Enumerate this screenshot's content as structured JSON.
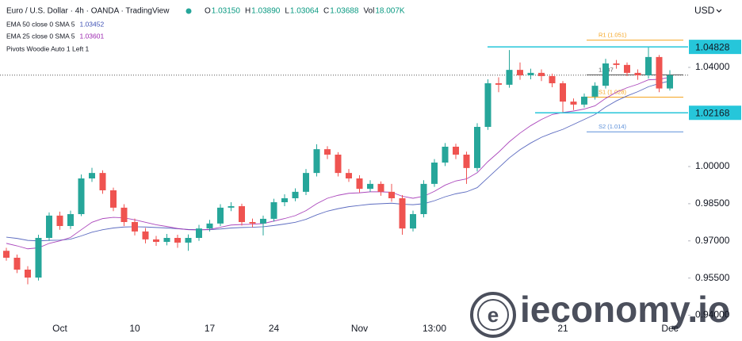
{
  "header": {
    "symbol": "Euro / U.S. Dollar · 4h · OANDA · TradingView",
    "ohlc": [
      [
        "O",
        "1.03150"
      ],
      [
        "H",
        "1.03890"
      ],
      [
        "L",
        "1.03064"
      ],
      [
        "C",
        "1.03688"
      ],
      [
        "Vol",
        "18.007K"
      ]
    ],
    "indicators": [
      "EMA 50 close 0 SMA 5",
      "EMA 25 close 0 SMA 5",
      "Pivots Woodie Auto 1 Left 1"
    ],
    "currency": "USD",
    "watermark": "ieconomy.io"
  },
  "chart_data": {
    "type": "candlestick",
    "categories": [
      null,
      null,
      null,
      null,
      null,
      "Oct",
      null,
      null,
      null,
      null,
      null,
      null,
      "10",
      null,
      null,
      null,
      null,
      null,
      null,
      "17",
      null,
      null,
      null,
      null,
      null,
      "24",
      null,
      null,
      null,
      null,
      null,
      null,
      null,
      "Nov",
      null,
      null,
      null,
      null,
      null,
      null,
      "13:00",
      null,
      null,
      null,
      null,
      null,
      null,
      null,
      null,
      null,
      null,
      null,
      "21",
      null,
      null,
      null,
      null,
      null,
      null,
      null,
      null,
      null,
      "Dec"
    ],
    "open": [
      0.966,
      0.9632,
      0.9584,
      0.9552,
      0.9712,
      0.9802,
      0.976,
      0.9808,
      0.9952,
      0.9974,
      0.9904,
      0.9834,
      0.9776,
      0.9738,
      0.9706,
      0.9696,
      0.9712,
      0.9693,
      0.9712,
      0.975,
      0.977,
      0.9834,
      0.984,
      0.9776,
      0.977,
      0.9789,
      0.9856,
      0.9872,
      0.9898,
      0.9974,
      1.007,
      1.0048,
      0.9974,
      0.9952,
      0.991,
      0.993,
      0.9898,
      0.9872,
      0.975,
      0.9808,
      0.993,
      1.0016,
      1.008,
      1.0048,
      0.9994,
      1.016,
      1.0336,
      1.033,
      1.039,
      1.0368,
      1.0378,
      1.0365,
      1.0336,
      1.0262,
      1.025,
      1.0282,
      1.0326,
      1.0416,
      1.041,
      1.0378,
      1.0368,
      1.0442,
      1.0315
    ],
    "high": [
      0.9672,
      0.9645,
      0.9598,
      0.9725,
      0.9815,
      0.9818,
      0.9822,
      0.9968,
      0.9995,
      0.9985,
      0.9915,
      0.9848,
      0.979,
      0.9752,
      0.972,
      0.9728,
      0.9725,
      0.9726,
      0.9765,
      0.9785,
      0.9848,
      0.9856,
      0.985,
      0.979,
      0.9802,
      0.987,
      0.9888,
      0.9912,
      0.999,
      1.009,
      1.0082,
      1.0058,
      0.999,
      0.9965,
      0.9945,
      0.994,
      0.993,
      0.9885,
      0.9822,
      0.9945,
      1.003,
      1.0095,
      1.0092,
      1.006,
      1.0175,
      1.0352,
      1.036,
      1.047,
      1.042,
      1.0395,
      1.0392,
      1.0375,
      1.0345,
      1.0275,
      1.0295,
      1.034,
      1.0435,
      1.043,
      1.042,
      1.0392,
      1.0483,
      1.045,
      1.0389
    ],
    "low": [
      0.962,
      0.957,
      0.9525,
      0.954,
      0.97,
      0.9745,
      0.9748,
      0.98,
      0.9938,
      0.989,
      0.982,
      0.976,
      0.9722,
      0.969,
      0.968,
      0.9682,
      0.9672,
      0.966,
      0.97,
      0.9738,
      0.976,
      0.982,
      0.9762,
      0.9755,
      0.9722,
      0.9778,
      0.984,
      0.986,
      0.9885,
      0.996,
      1.003,
      0.996,
      0.9938,
      0.9895,
      0.9898,
      0.9882,
      0.9858,
      0.9725,
      0.9738,
      0.9795,
      0.9918,
      1.0002,
      1.003,
      0.993,
      0.998,
      1.0148,
      1.03,
      1.0318,
      1.035,
      1.0352,
      1.0345,
      1.032,
      1.0217,
      1.0228,
      1.0238,
      1.027,
      1.0315,
      1.0395,
      1.0365,
      1.035,
      1.0355,
      1.03,
      1.03064
    ],
    "close": [
      0.9632,
      0.9584,
      0.9552,
      0.9712,
      0.9802,
      0.976,
      0.9808,
      0.9952,
      0.9974,
      0.9904,
      0.9834,
      0.9776,
      0.9738,
      0.9706,
      0.9696,
      0.9712,
      0.9693,
      0.9712,
      0.975,
      0.977,
      0.9834,
      0.984,
      0.9776,
      0.977,
      0.9789,
      0.9856,
      0.9872,
      0.9898,
      0.9974,
      1.007,
      1.0048,
      0.9974,
      0.9952,
      0.991,
      0.993,
      0.9898,
      0.9872,
      0.975,
      0.9808,
      0.993,
      1.0016,
      1.008,
      1.0048,
      0.9994,
      1.016,
      1.0336,
      1.033,
      1.039,
      1.0368,
      1.0378,
      1.0365,
      1.0336,
      1.0262,
      1.025,
      1.0282,
      1.0326,
      1.0416,
      1.041,
      1.0378,
      1.0368,
      1.0442,
      1.0315,
      1.03688
    ],
    "up_color": "#26a69a",
    "down_color": "#ef5350",
    "lines": [
      {
        "name": "EMA 50 close 0 SMA 5",
        "color": "#3f51b5",
        "values": [
          0.9715,
          0.971,
          0.9702,
          0.97,
          0.9702,
          0.9703,
          0.9707,
          0.972,
          0.9735,
          0.9745,
          0.9752,
          0.9756,
          0.9757,
          0.9756,
          0.9754,
          0.9752,
          0.9749,
          0.9746,
          0.9745,
          0.9745,
          0.9748,
          0.9752,
          0.9754,
          0.9755,
          0.9757,
          0.9762,
          0.9768,
          0.9775,
          0.9787,
          0.9805,
          0.982,
          0.983,
          0.9838,
          0.9843,
          0.9848,
          0.985,
          0.9852,
          0.9848,
          0.9846,
          0.985,
          0.9862,
          0.9878,
          0.989,
          0.9898,
          0.9915,
          0.9955,
          0.9995,
          1.0035,
          1.0068,
          1.0095,
          1.0118,
          1.0135,
          1.015,
          1.017,
          1.019,
          1.021,
          1.024,
          1.0265,
          1.0285,
          1.0302,
          1.0322,
          1.0335,
          1.03452
        ]
      },
      {
        "name": "EMA 25 close 0 SMA 5",
        "color": "#9c27b0",
        "values": [
          0.969,
          0.968,
          0.9668,
          0.9672,
          0.969,
          0.97,
          0.9714,
          0.9745,
          0.9775,
          0.979,
          0.9795,
          0.9793,
          0.9785,
          0.9775,
          0.9765,
          0.9758,
          0.975,
          0.9745,
          0.9744,
          0.9746,
          0.9755,
          0.9764,
          0.9766,
          0.9767,
          0.977,
          0.978,
          0.979,
          0.9802,
          0.9822,
          0.985,
          0.9872,
          0.9884,
          0.9892,
          0.9894,
          0.9898,
          0.9898,
          0.9896,
          0.988,
          0.9872,
          0.988,
          0.99,
          0.9925,
          0.9942,
          0.995,
          0.9975,
          1.002,
          1.0058,
          1.01,
          1.0135,
          1.0165,
          1.019,
          1.021,
          1.0218,
          1.0224,
          1.0232,
          1.0245,
          1.0275,
          1.03,
          1.0318,
          1.0332,
          1.035,
          1.0352,
          1.03601
        ]
      }
    ],
    "pivots": [
      {
        "label": "R1 (1.051)",
        "value": 1.051,
        "color": "#f5a623"
      },
      {
        "label": "1.037",
        "value": 1.037,
        "color": "#555555"
      },
      {
        "label": "S1 (1.028)",
        "value": 1.028,
        "color": "#f5a623"
      },
      {
        "label": "S2 (1.014)",
        "value": 1.014,
        "color": "#5b8fd9"
      }
    ],
    "levels": [
      {
        "value": 1.04828,
        "label": "1.04828",
        "color": "#26c6da"
      },
      {
        "value": 1.02168,
        "label": "1.02168",
        "color": "#26c6da"
      }
    ],
    "ylim": [
      0.9376,
      1.0672
    ],
    "yticks": [
      {
        "value": 0.94,
        "label": "0.94000"
      },
      {
        "value": 0.955,
        "label": "0.95500"
      },
      {
        "value": 0.97,
        "label": "0.97000"
      },
      {
        "value": 0.985,
        "label": "0.98500"
      },
      {
        "value": 1.0,
        "label": "1.00000"
      },
      {
        "value": 1.04,
        "label": "1.04000"
      }
    ],
    "grid": false
  }
}
